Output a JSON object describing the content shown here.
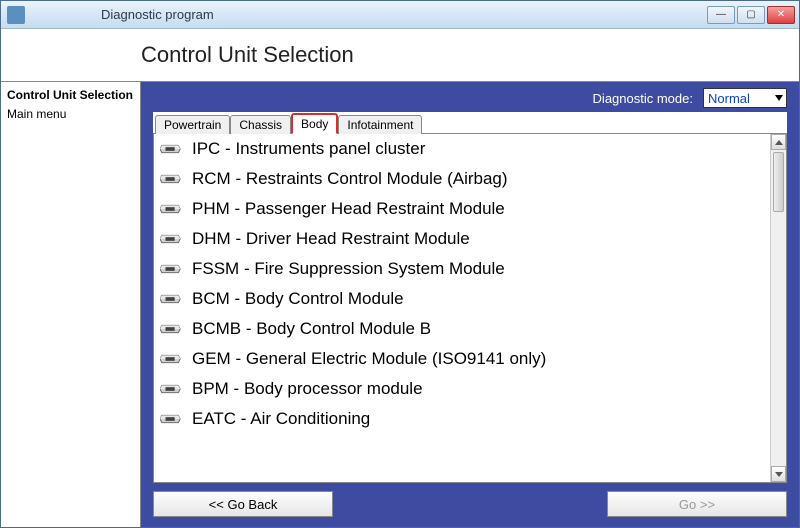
{
  "window": {
    "title": "Diagnostic program"
  },
  "header": {
    "title": "Control Unit Selection"
  },
  "sidebar": {
    "items": [
      {
        "label": "Control Unit Selection",
        "bold": true
      },
      {
        "label": "Main menu",
        "bold": false
      }
    ]
  },
  "diagnostic_mode": {
    "label": "Diagnostic mode:",
    "value": "Normal"
  },
  "tabs": [
    {
      "label": "Powertrain",
      "active": false
    },
    {
      "label": "Chassis",
      "active": false
    },
    {
      "label": "Body",
      "active": true
    },
    {
      "label": "Infotainment",
      "active": false
    }
  ],
  "modules": [
    "IPC - Instruments panel cluster",
    "RCM - Restraints Control Module (Airbag)",
    "PHM - Passenger Head Restraint Module",
    "DHM - Driver Head Restraint Module",
    "FSSM - Fire Suppression System Module",
    "BCM - Body Control Module",
    "BCMB - Body Control Module B",
    "GEM - General Electric Module (ISO9141 only)",
    "BPM - Body processor module",
    "EATC - Air Conditioning"
  ],
  "footer": {
    "back": "<< Go Back",
    "go": "Go >>"
  },
  "colors": {
    "panel_bg": "#3d4ba0",
    "active_tab_border": "#d03030",
    "select_text": "#1040c0"
  }
}
